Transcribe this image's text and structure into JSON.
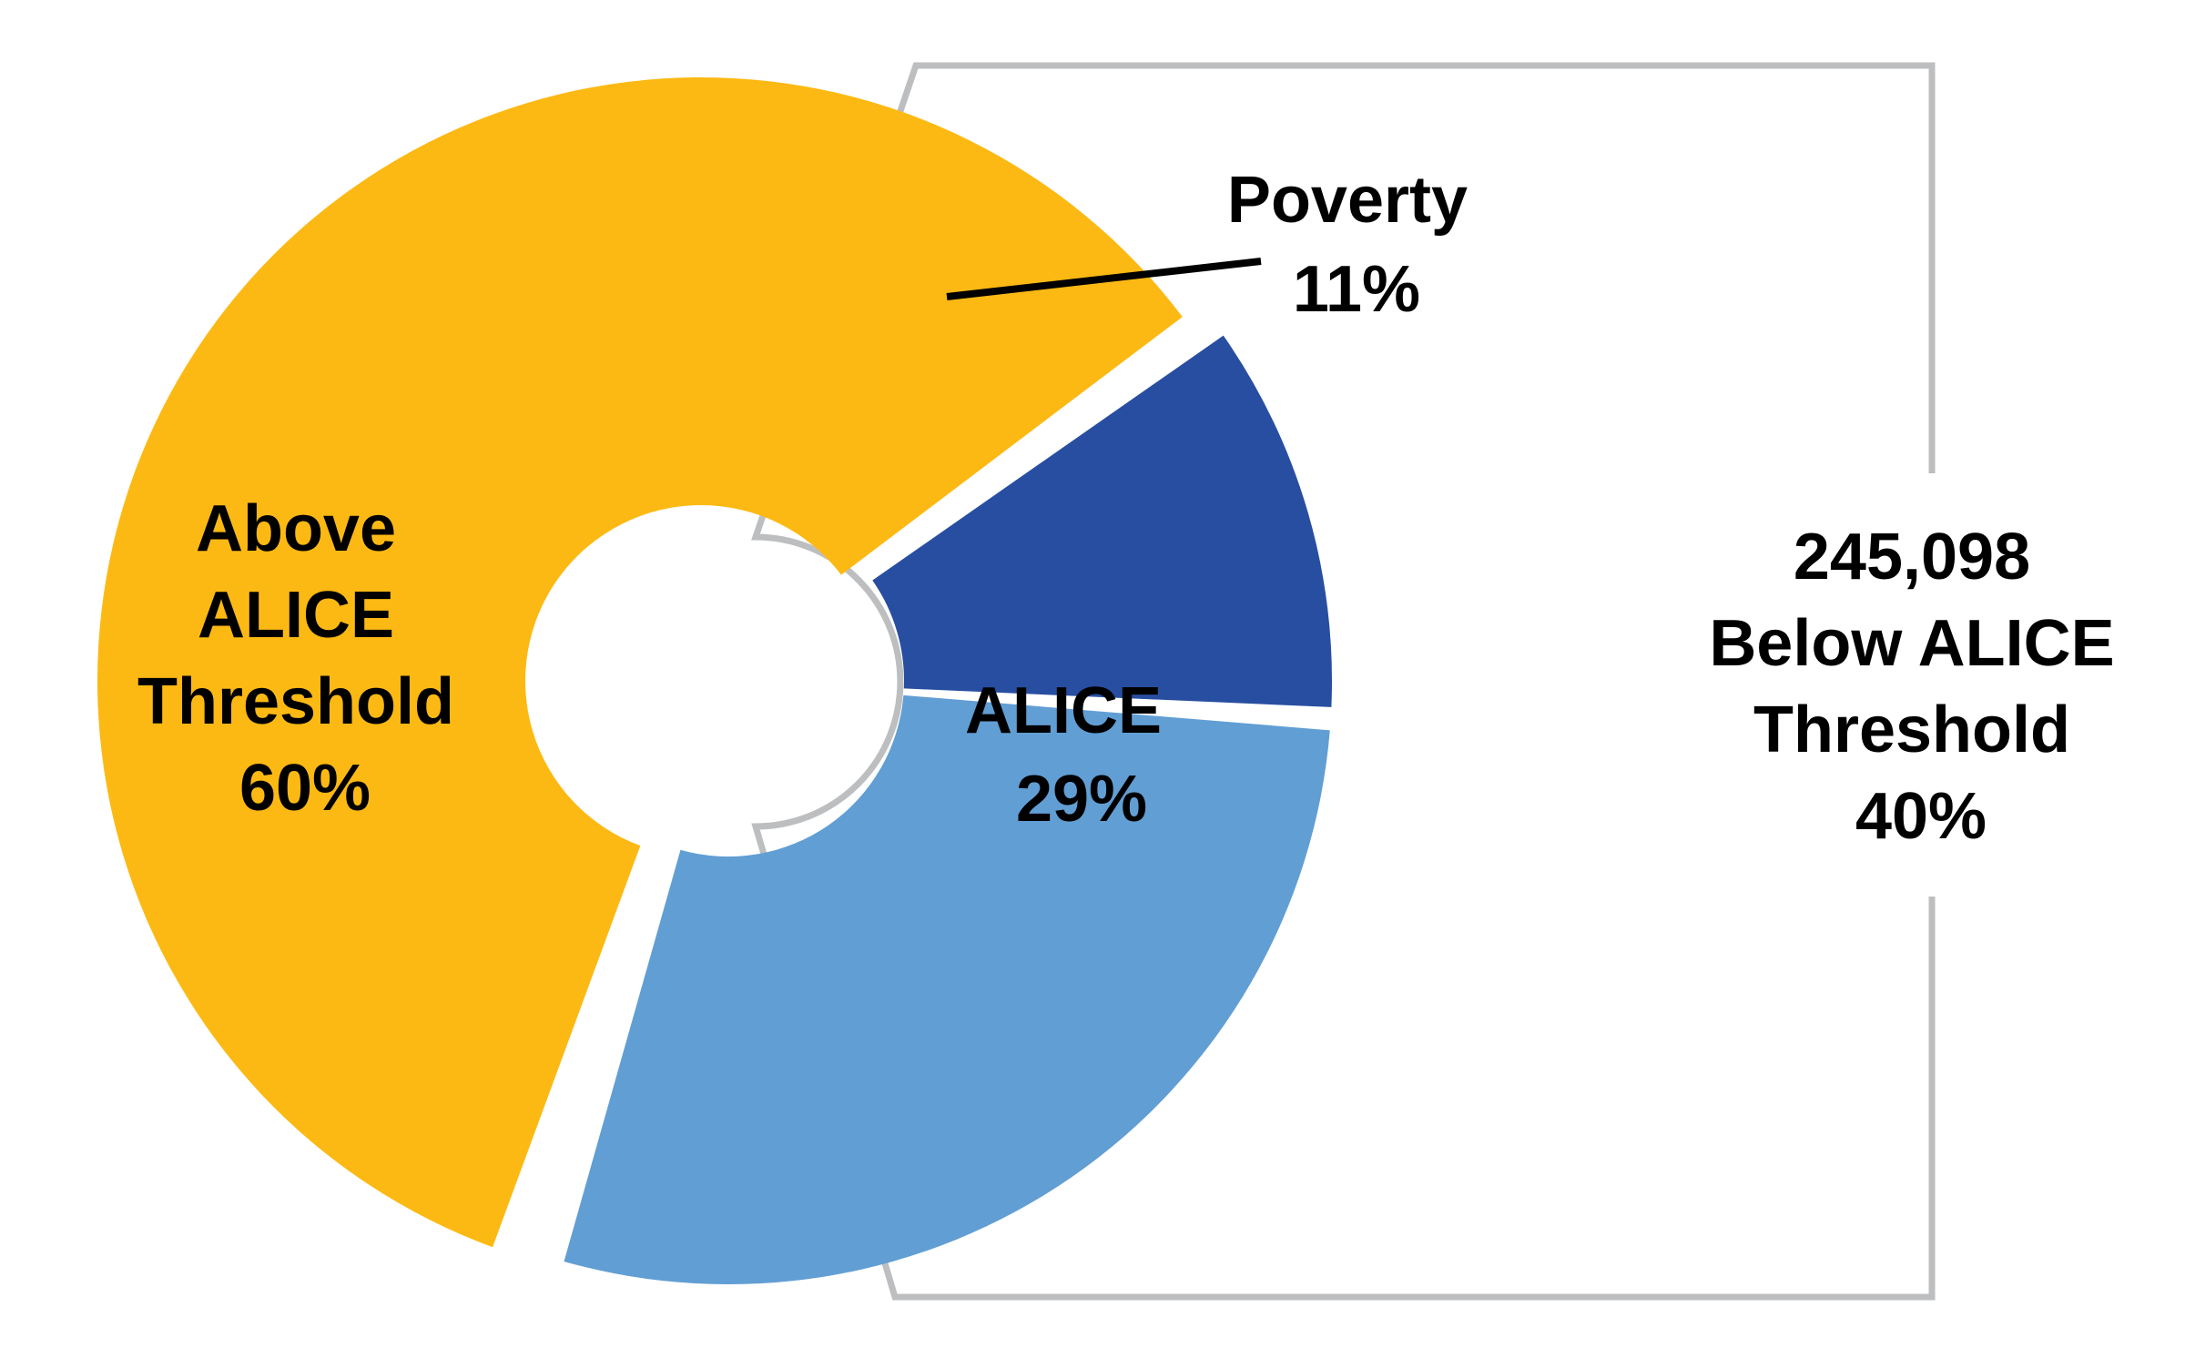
{
  "chart_data": {
    "type": "pie",
    "style": "donut-with-exploded-group",
    "slices": [
      {
        "label_lines": [
          "Above",
          "ALICE",
          "Threshold",
          "60%"
        ],
        "name": "Above ALICE Threshold",
        "value": 60,
        "color": "#FDB913"
      },
      {
        "label_lines": [
          "Poverty",
          "11%"
        ],
        "name": "Poverty",
        "value": 11,
        "color": "#284EA1"
      },
      {
        "label_lines": [
          "ALICE",
          "29%"
        ],
        "name": "ALICE",
        "value": 29,
        "color": "#619ED4"
      }
    ],
    "group": {
      "members": [
        "Poverty",
        "ALICE"
      ],
      "label_lines": [
        "245,098",
        "Below ALICE",
        "Threshold",
        "40%"
      ],
      "outline_color": "#BCBEC0"
    }
  }
}
